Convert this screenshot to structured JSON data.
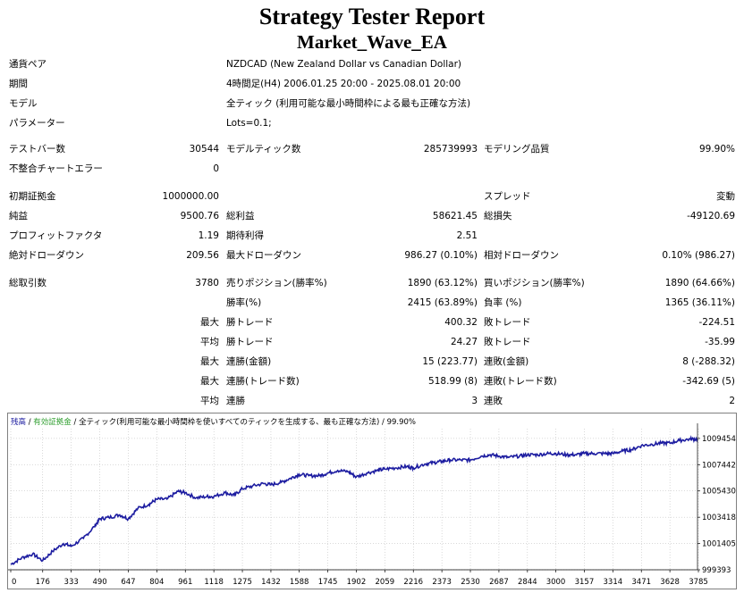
{
  "report": {
    "title": "Strategy Tester Report",
    "ea_name": "Market_Wave_EA"
  },
  "info": [
    {
      "label": "通貨ペア",
      "value": "NZDCAD (New Zealand Dollar vs Canadian Dollar)"
    },
    {
      "label": "期間",
      "value": "4時間足(H4) 2006.01.25 20:00 - 2025.08.01 20:00"
    },
    {
      "label": "モデル",
      "value": "全ティック (利用可能な最小時間枠による最も正確な方法)"
    },
    {
      "label": "パラメーター",
      "value": "Lots=0.1;"
    }
  ],
  "stats": {
    "bars_label": "テストバー数",
    "bars": "30544",
    "ticks_label": "モデルティック数",
    "ticks": "285739993",
    "quality_label": "モデリング品質",
    "quality": "99.90%",
    "mismatch_label": "不整合チャートエラー",
    "mismatch": "0",
    "deposit_label": "初期証拠金",
    "deposit": "1000000.00",
    "spread_label": "スプレッド",
    "spread": "変動",
    "net_label": "純益",
    "net": "9500.76",
    "gross_profit_label": "総利益",
    "gross_profit": "58621.45",
    "gross_loss_label": "総損失",
    "gross_loss": "-49120.69",
    "pf_label": "プロフィットファクタ",
    "pf": "1.19",
    "expected_label": "期待利得",
    "expected": "2.51",
    "abs_dd_label": "絶対ドローダウン",
    "abs_dd": "209.56",
    "max_dd_label": "最大ドローダウン",
    "max_dd": "986.27 (0.10%)",
    "rel_dd_label": "相対ドローダウン",
    "rel_dd": "0.10% (986.27)",
    "total_trades_label": "総取引数",
    "total_trades": "3780",
    "short_label": "売りポジション(勝率%)",
    "short": "1890 (63.12%)",
    "long_label": "買いポジション(勝率%)",
    "long": "1890 (64.66%)",
    "win_pct_label": "勝率(%)",
    "win_pct": "2415 (63.89%)",
    "loss_pct_label": "負率 (%)",
    "loss_pct": "1365 (36.11%)",
    "max_label": "最大",
    "avg_label": "平均",
    "win_trade_label": "勝トレード",
    "loss_trade_label": "敗トレード",
    "largest_win": "400.32",
    "largest_loss": "-224.51",
    "avg_win": "24.27",
    "avg_loss": "-35.99",
    "cons_win_money_label": "連勝(金額)",
    "cons_win_money": "15 (223.77)",
    "cons_loss_money_label": "連敗(金額)",
    "cons_loss_money": "8 (-288.32)",
    "cons_win_count_label": "連勝(トレード数)",
    "cons_win_count": "518.99 (8)",
    "cons_loss_count_label": "連敗(トレード数)",
    "cons_loss_count": "-342.69 (5)",
    "avg_cons_win_label": "連勝",
    "avg_cons_win": "3",
    "avg_cons_loss_label": "連敗",
    "avg_cons_loss": "2"
  },
  "chart_legend": {
    "balance": "残高",
    "sep1": " / ",
    "equity": "有効証拠金",
    "sep2": " / ",
    "model": "全ティック(利用可能な最小時間枠を使いすべてのティックを生成する、最も正確な方法)",
    "sep3": " / ",
    "quality": "99.90%"
  },
  "colors": {
    "balance": "#1c1ca0",
    "equity": "#2e9e2e",
    "grid": "#b4b4b4"
  },
  "chart_data": {
    "type": "line",
    "xlim": [
      0,
      3780
    ],
    "ylim": [
      999393,
      1010200
    ],
    "x_ticks": [
      0,
      176,
      333,
      490,
      647,
      804,
      961,
      1118,
      1275,
      1432,
      1588,
      1745,
      1902,
      2059,
      2216,
      2373,
      2530,
      2687,
      2844,
      3000,
      3157,
      3314,
      3471,
      3628,
      3785
    ],
    "y_ticks": [
      999393,
      1001405,
      1003418,
      1005430,
      1007442,
      1009454
    ],
    "series": [
      {
        "name": "残高",
        "x": [
          0,
          60,
          120,
          176,
          230,
          290,
          333,
          400,
          460,
          490,
          540,
          600,
          647,
          700,
          760,
          804,
          860,
          920,
          961,
          1020,
          1080,
          1118,
          1180,
          1230,
          1275,
          1330,
          1390,
          1432,
          1490,
          1540,
          1588,
          1640,
          1700,
          1745,
          1800,
          1860,
          1902,
          1960,
          2020,
          2059,
          2120,
          2180,
          2216,
          2280,
          2330,
          2373,
          2420,
          2480,
          2530,
          2590,
          2640,
          2687,
          2740,
          2800,
          2844,
          2900,
          2960,
          3000,
          3060,
          3110,
          3157,
          3210,
          3270,
          3314,
          3370,
          3420,
          3471,
          3530,
          3580,
          3628,
          3680,
          3740,
          3780
        ],
        "values": [
          999800,
          1000300,
          1000600,
          1000100,
          1000800,
          1001400,
          1001200,
          1001800,
          1002700,
          1003300,
          1003400,
          1003600,
          1003300,
          1004100,
          1004400,
          1004800,
          1004800,
          1005400,
          1005300,
          1004900,
          1005000,
          1005000,
          1005300,
          1005100,
          1005600,
          1005800,
          1006000,
          1005900,
          1006100,
          1006400,
          1006700,
          1006600,
          1006600,
          1006800,
          1007000,
          1006900,
          1006500,
          1006800,
          1007000,
          1007100,
          1007200,
          1007300,
          1007200,
          1007500,
          1007600,
          1007700,
          1007800,
          1007800,
          1007800,
          1008100,
          1008200,
          1008100,
          1008000,
          1008100,
          1008200,
          1008200,
          1008300,
          1008300,
          1008200,
          1008200,
          1008300,
          1008300,
          1008300,
          1008300,
          1008500,
          1008600,
          1008900,
          1009000,
          1009100,
          1009100,
          1009300,
          1009400,
          1009400
        ]
      }
    ]
  }
}
